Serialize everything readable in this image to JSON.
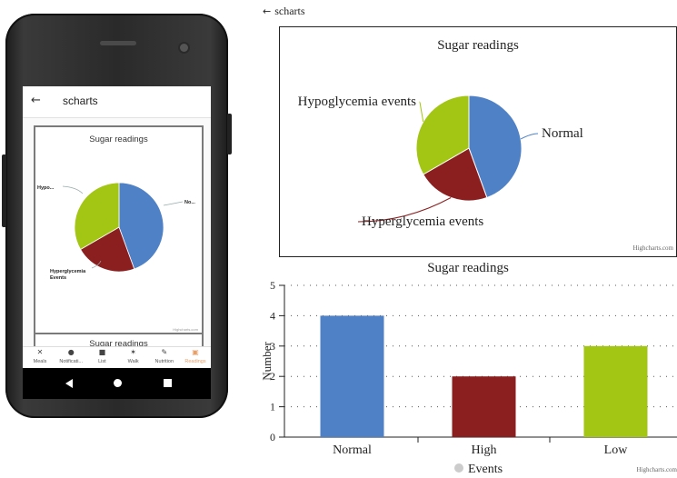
{
  "phone": {
    "app_title": "scharts",
    "back_icon": "arrow-left-icon",
    "mini_chart": {
      "title": "Sugar readings",
      "labels": [
        "Hypo...",
        "No...",
        "Hyperglycemia Events"
      ],
      "credit": "Highcharts.com"
    },
    "second_chart_title": "Sugar readings",
    "tabs": [
      {
        "label": "Meals",
        "icon": "fork-knife-icon",
        "glyph": "✕"
      },
      {
        "label": "Notificati...",
        "icon": "bell-icon",
        "glyph": "●"
      },
      {
        "label": "List",
        "icon": "list-icon",
        "glyph": "■"
      },
      {
        "label": "Walk",
        "icon": "walk-icon",
        "glyph": "✶"
      },
      {
        "label": "Nutrition",
        "icon": "carrot-icon",
        "glyph": "✎"
      },
      {
        "label": "Readings",
        "icon": "camera-icon",
        "glyph": "▣"
      }
    ],
    "active_tab": "Readings"
  },
  "header": {
    "back_icon": "arrow-left-icon",
    "back_glyph": "←",
    "title": "scharts"
  },
  "chart_data": [
    {
      "type": "pie",
      "title": "Sugar readings",
      "slices": [
        {
          "name": "Normal",
          "value": 4,
          "color": "#4f81c7"
        },
        {
          "name": "Hyperglycemia events",
          "value": 2,
          "color": "#8b1f1f"
        },
        {
          "name": "Hypoglycemia events",
          "value": 3,
          "color": "#a2c613"
        }
      ],
      "credit": "Highcharts.com"
    },
    {
      "type": "bar",
      "title": "Sugar readings",
      "categories": [
        "Normal",
        "High",
        "Low"
      ],
      "series": [
        {
          "name": "Events",
          "values": [
            4,
            2,
            3
          ],
          "colors": [
            "#4f81c7",
            "#8b1f1f",
            "#a2c613"
          ]
        }
      ],
      "ylabel": "Number",
      "xlabel": "",
      "ylim": [
        0,
        5
      ],
      "yticks": [
        "0",
        "1",
        "2",
        "3",
        "4",
        "5"
      ],
      "grid": true,
      "legend": "bottom",
      "credit": "Highcharts.com"
    }
  ]
}
